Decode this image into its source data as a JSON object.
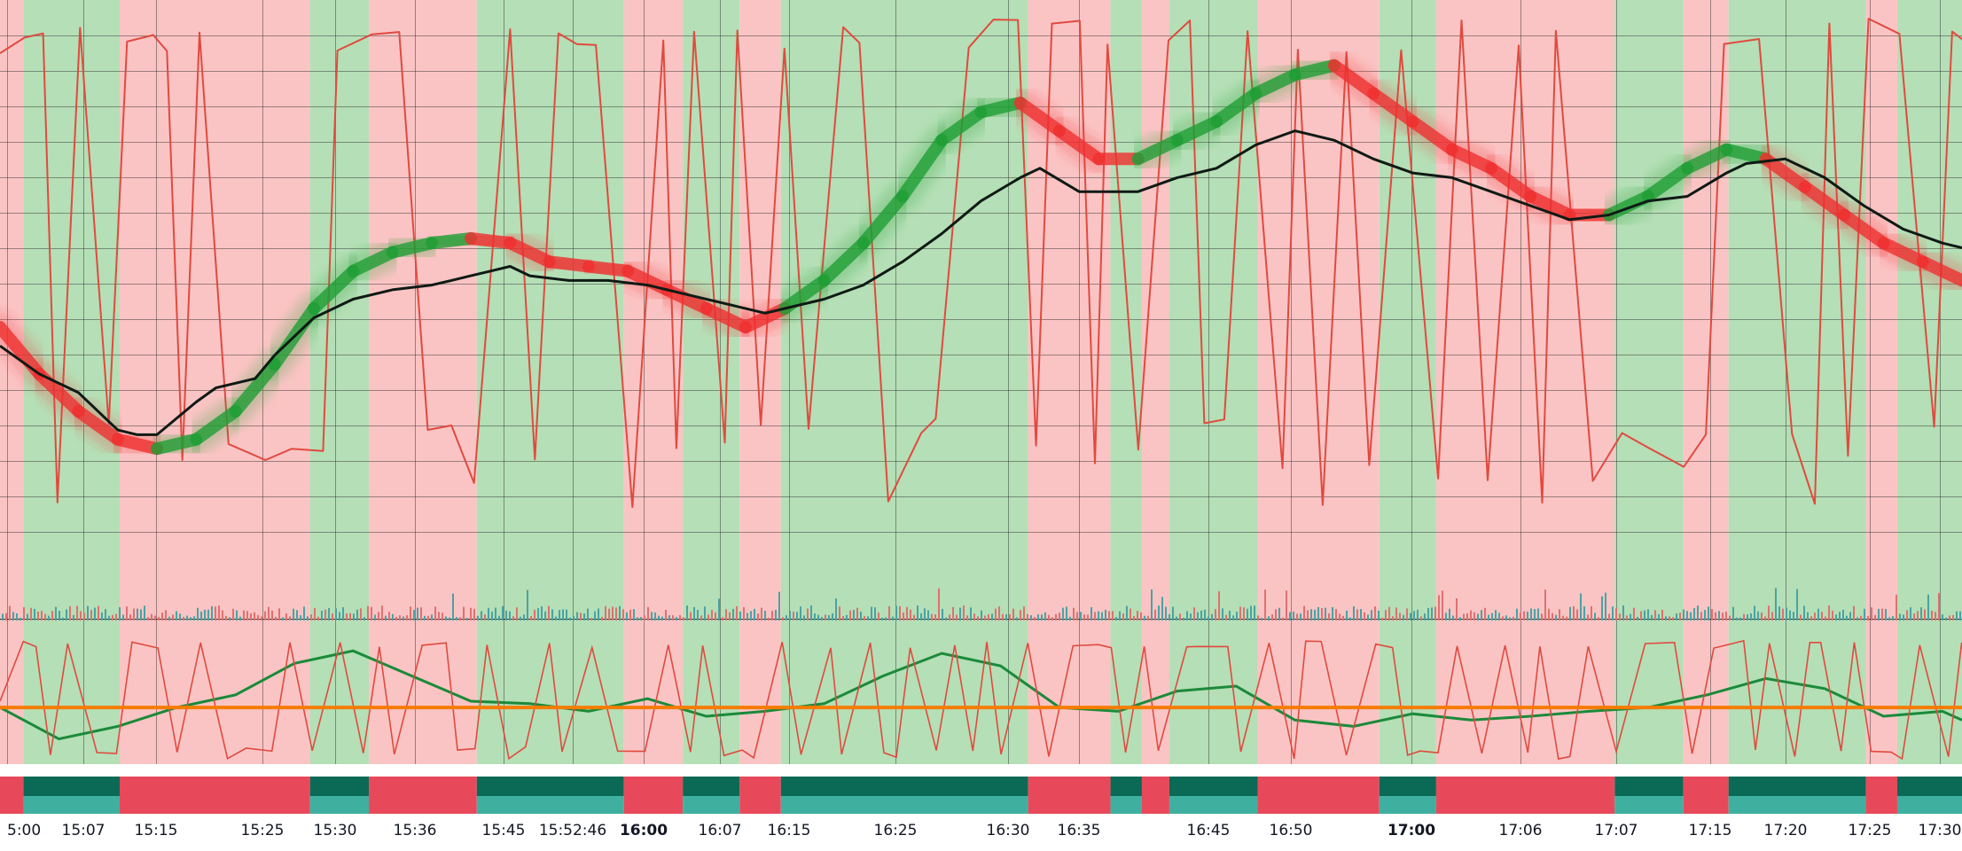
{
  "chart_data": {
    "type": "line",
    "title": "",
    "xlabel": "",
    "ylabel": "",
    "time_ticks": [
      {
        "label": "5:00"
      },
      {
        "label": "15:07"
      },
      {
        "label": "15:15"
      },
      {
        "label": "15:25"
      },
      {
        "label": "15:30"
      },
      {
        "label": "15:36"
      },
      {
        "label": "15:45"
      },
      {
        "label": "15:52:46"
      },
      {
        "label": "16:00",
        "bold": true
      },
      {
        "label": "16:07"
      },
      {
        "label": "16:15"
      },
      {
        "label": "16:25"
      },
      {
        "label": "16:30"
      },
      {
        "label": "16:35"
      },
      {
        "label": "16:45"
      },
      {
        "label": "16:50"
      },
      {
        "label": "17:00",
        "bold": true
      },
      {
        "label": "17:06"
      },
      {
        "label": "17:07"
      },
      {
        "label": "17:15"
      },
      {
        "label": "17:20"
      },
      {
        "label": "17:25"
      },
      {
        "label": "17:30"
      }
    ],
    "x_range": [
      0,
      100
    ],
    "grid": true,
    "regime_bands": [
      {
        "from": 0,
        "to": 1.2,
        "state": "bear"
      },
      {
        "from": 1.2,
        "to": 6.1,
        "state": "bull"
      },
      {
        "from": 6.1,
        "to": 15.8,
        "state": "bear"
      },
      {
        "from": 15.8,
        "to": 18.8,
        "state": "bull"
      },
      {
        "from": 18.8,
        "to": 24.3,
        "state": "bear"
      },
      {
        "from": 24.3,
        "to": 31.8,
        "state": "bull"
      },
      {
        "from": 31.8,
        "to": 34.8,
        "state": "bear"
      },
      {
        "from": 34.8,
        "to": 37.7,
        "state": "bull"
      },
      {
        "from": 37.7,
        "to": 39.8,
        "state": "bear"
      },
      {
        "from": 39.8,
        "to": 52.4,
        "state": "bull"
      },
      {
        "from": 52.4,
        "to": 56.6,
        "state": "bear"
      },
      {
        "from": 56.6,
        "to": 58.2,
        "state": "bull"
      },
      {
        "from": 58.2,
        "to": 59.6,
        "state": "bear"
      },
      {
        "from": 59.6,
        "to": 64.1,
        "state": "bull"
      },
      {
        "from": 64.1,
        "to": 70.3,
        "state": "bear"
      },
      {
        "from": 70.3,
        "to": 73.2,
        "state": "bull"
      },
      {
        "from": 73.2,
        "to": 82.3,
        "state": "bear"
      },
      {
        "from": 82.3,
        "to": 85.8,
        "state": "bull"
      },
      {
        "from": 85.8,
        "to": 88.1,
        "state": "bear"
      },
      {
        "from": 88.1,
        "to": 95.1,
        "state": "bull"
      },
      {
        "from": 95.1,
        "to": 96.7,
        "state": "bear"
      },
      {
        "from": 96.7,
        "to": 100,
        "state": "bull"
      }
    ],
    "series": [
      {
        "role": "smoothed-trend",
        "x": [
          0,
          2,
          4,
          6,
          8,
          10,
          12,
          14,
          16,
          18,
          20,
          22,
          24,
          26,
          28,
          30,
          32,
          34,
          36,
          38,
          40,
          42,
          44,
          46,
          48,
          50,
          52,
          54,
          56,
          58,
          60,
          62,
          64,
          66,
          68,
          70,
          72,
          74,
          76,
          78,
          80,
          82,
          84,
          86,
          88,
          90,
          92,
          94,
          96,
          98,
          100
        ],
        "y": [
          70,
          65,
          61,
          58,
          57,
          58,
          61,
          66,
          72,
          76,
          78,
          79,
          79.5,
          79,
          77,
          76.5,
          76,
          74,
          72,
          70,
          72,
          75,
          79,
          84,
          90,
          93,
          94,
          91,
          88,
          88,
          90,
          92,
          95,
          97,
          98,
          95,
          92,
          89,
          87,
          84,
          82,
          82,
          84,
          87,
          89,
          88,
          85,
          82,
          79,
          77,
          75
        ],
        "segment_colors": [
          "bear",
          "bear",
          "bear",
          "bear",
          "bull",
          "bull",
          "bull",
          "bull",
          "bull",
          "bull",
          "bull",
          "bull",
          "bear",
          "bear",
          "bear",
          "bear",
          "bear",
          "bear",
          "bear",
          "bear",
          "bull",
          "bull",
          "bull",
          "bull",
          "bull",
          "bull",
          "bear",
          "bear",
          "bear",
          "bull",
          "bull",
          "bull",
          "bull",
          "bull",
          "bear",
          "bear",
          "bear",
          "bear",
          "bear",
          "bear",
          "bear",
          "bull",
          "bull",
          "bull",
          "bull",
          "bear",
          "bear",
          "bear",
          "bear",
          "bear"
        ]
      },
      {
        "role": "price-step",
        "x": [
          0,
          2,
          4,
          6,
          7,
          8,
          10,
          11,
          13,
          14,
          16,
          18,
          20,
          22,
          23,
          24,
          25,
          26,
          27,
          29,
          31,
          33,
          35,
          37,
          39,
          40,
          42,
          44,
          46,
          48,
          50,
          52,
          53,
          55,
          57,
          58,
          60,
          62,
          64,
          66,
          68,
          70,
          72,
          74,
          76,
          78,
          80,
          82,
          84,
          86,
          88,
          89,
          91,
          93,
          95,
          97,
          99,
          100
        ],
        "y": [
          68,
          65,
          63,
          59,
          58.5,
          58.5,
          62,
          63.5,
          64.5,
          67,
          71,
          73,
          74,
          74.5,
          75,
          75.5,
          76,
          76.5,
          75.5,
          75,
          75,
          74.5,
          73.5,
          72.5,
          71.5,
          72,
          73,
          74.5,
          77,
          80,
          83.5,
          86,
          87,
          84.5,
          84.5,
          84.5,
          86,
          87,
          89.5,
          91,
          90,
          88,
          86.5,
          86,
          84.5,
          83,
          81.5,
          82,
          83.5,
          84,
          86.5,
          87.5,
          88,
          86,
          83,
          80.5,
          79,
          78.5
        ]
      }
    ],
    "oscillator": {
      "series": [
        {
          "role": "momentum",
          "x": [
            0,
            3,
            6,
            9,
            12,
            15,
            18,
            21,
            24,
            27,
            30,
            33,
            36,
            39,
            42,
            45,
            48,
            51,
            54,
            57,
            60,
            63,
            66,
            69,
            72,
            75,
            78,
            81,
            84,
            87,
            90,
            93,
            96,
            99,
            100
          ],
          "y": [
            45,
            20,
            30,
            45,
            55,
            80,
            90,
            70,
            50,
            48,
            42,
            52,
            38,
            42,
            48,
            70,
            88,
            78,
            45,
            42,
            58,
            62,
            35,
            30,
            40,
            35,
            38,
            42,
            45,
            55,
            68,
            60,
            38,
            42,
            35
          ]
        }
      ],
      "baseline": 45
    },
    "colors": {
      "bull_band": "#b5dfb6",
      "bear_band": "#fbc4c4",
      "bull_line": "#1f9e34",
      "bear_line": "#ef2f2f",
      "stoch_line": "#e04a3f",
      "price_line": "#0f1a15",
      "baseline": "#f57c00",
      "bull_strip": "#0a6a55",
      "bear_strip": "#e8495a",
      "teal_strip": "#3fb0a0"
    }
  }
}
